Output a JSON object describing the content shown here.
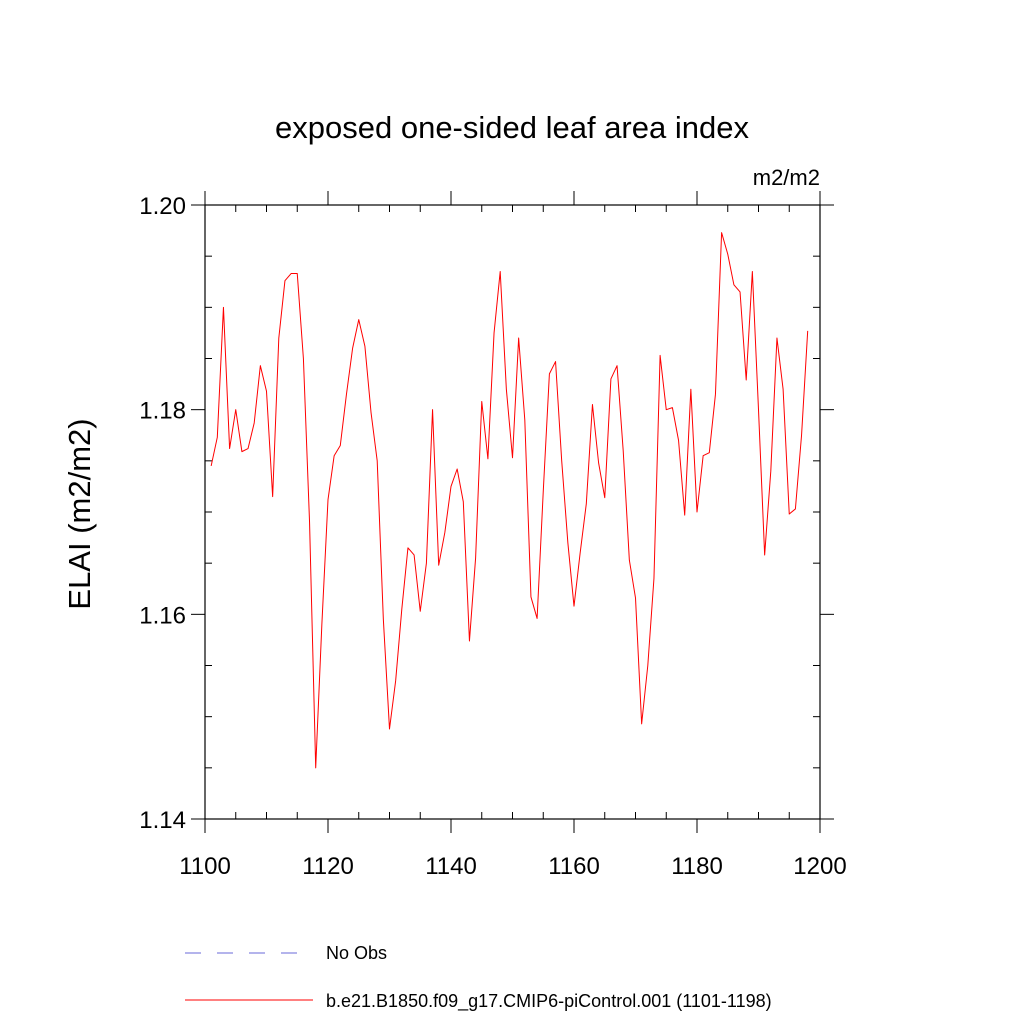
{
  "chart_data": {
    "type": "line",
    "title": "exposed one-sided leaf area index",
    "units": "m2/m2",
    "xlabel": "",
    "ylabel": "ELAI  (m2/m2)",
    "xlim": [
      1100,
      1200
    ],
    "ylim": [
      1.14,
      1.2
    ],
    "x_ticks": [
      1100,
      1120,
      1140,
      1160,
      1180,
      1200
    ],
    "x_tick_labels": [
      "1100",
      "1120",
      "1140",
      "1160",
      "1180",
      "1200"
    ],
    "x_minor_step": 5,
    "y_ticks": [
      1.14,
      1.16,
      1.18,
      1.2
    ],
    "y_tick_labels": [
      "1.14",
      "1.16",
      "1.18",
      "1.20"
    ],
    "y_minor_step": 0.005,
    "grid": false,
    "legend_position": "bottom",
    "series": [
      {
        "name": "b.e21.B1850.f09_g17.CMIP6-piControl.001 (1101-1198)",
        "color": "#ff0000",
        "style": "solid",
        "x_start": 1101,
        "values": [
          1.1745,
          1.1773,
          1.19,
          1.1762,
          1.18,
          1.1759,
          1.1762,
          1.1787,
          1.1843,
          1.1818,
          1.1715,
          1.187,
          1.1926,
          1.1933,
          1.1933,
          1.185,
          1.169,
          1.145,
          1.159,
          1.1712,
          1.1755,
          1.1765,
          1.1815,
          1.186,
          1.1888,
          1.1862,
          1.1797,
          1.175,
          1.1595,
          1.1488,
          1.1535,
          1.1605,
          1.1665,
          1.1658,
          1.1603,
          1.165,
          1.18,
          1.1648,
          1.168,
          1.1725,
          1.1742,
          1.171,
          1.1574,
          1.1655,
          1.1808,
          1.1752,
          1.1875,
          1.1935,
          1.182,
          1.1753,
          1.187,
          1.179,
          1.1617,
          1.1596,
          1.172,
          1.1835,
          1.1847,
          1.175,
          1.167,
          1.1608,
          1.166,
          1.1708,
          1.1805,
          1.1748,
          1.1714,
          1.183,
          1.1843,
          1.176,
          1.1653,
          1.1616,
          1.1493,
          1.155,
          1.1635,
          1.1853,
          1.18,
          1.1802,
          1.177,
          1.1697,
          1.182,
          1.17,
          1.1755,
          1.1758,
          1.1815,
          1.1973,
          1.1952,
          1.1922,
          1.1915,
          1.1829,
          1.1935,
          1.18,
          1.1658,
          1.174,
          1.187,
          1.182,
          1.1698,
          1.1703,
          1.1775,
          1.1877
        ]
      },
      {
        "name": "No Obs",
        "color": "#6a6ad8",
        "style": "dashed",
        "values": []
      }
    ]
  }
}
